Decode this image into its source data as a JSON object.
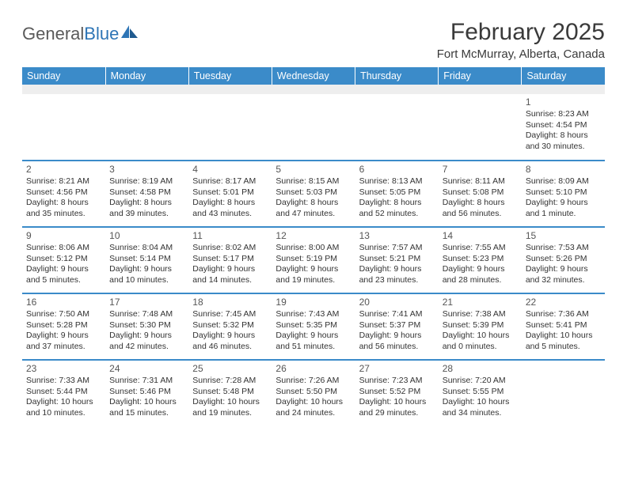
{
  "logo": {
    "text_gray": "General",
    "text_blue": "Blue"
  },
  "title": "February 2025",
  "location": "Fort McMurray, Alberta, Canada",
  "colors": {
    "header_bg": "#3b8bc9",
    "header_text": "#ffffff",
    "blank_row_bg": "#eeeeee",
    "separator": "#3b8bc9",
    "body_text": "#333333",
    "title_text": "#3a3a3a",
    "logo_gray": "#5a5a5a",
    "logo_blue": "#2e75b6"
  },
  "day_headers": [
    "Sunday",
    "Monday",
    "Tuesday",
    "Wednesday",
    "Thursday",
    "Friday",
    "Saturday"
  ],
  "weeks": [
    [
      null,
      null,
      null,
      null,
      null,
      null,
      {
        "n": "1",
        "sr": "Sunrise: 8:23 AM",
        "ss": "Sunset: 4:54 PM",
        "dl": "Daylight: 8 hours and 30 minutes."
      }
    ],
    [
      {
        "n": "2",
        "sr": "Sunrise: 8:21 AM",
        "ss": "Sunset: 4:56 PM",
        "dl": "Daylight: 8 hours and 35 minutes."
      },
      {
        "n": "3",
        "sr": "Sunrise: 8:19 AM",
        "ss": "Sunset: 4:58 PM",
        "dl": "Daylight: 8 hours and 39 minutes."
      },
      {
        "n": "4",
        "sr": "Sunrise: 8:17 AM",
        "ss": "Sunset: 5:01 PM",
        "dl": "Daylight: 8 hours and 43 minutes."
      },
      {
        "n": "5",
        "sr": "Sunrise: 8:15 AM",
        "ss": "Sunset: 5:03 PM",
        "dl": "Daylight: 8 hours and 47 minutes."
      },
      {
        "n": "6",
        "sr": "Sunrise: 8:13 AM",
        "ss": "Sunset: 5:05 PM",
        "dl": "Daylight: 8 hours and 52 minutes."
      },
      {
        "n": "7",
        "sr": "Sunrise: 8:11 AM",
        "ss": "Sunset: 5:08 PM",
        "dl": "Daylight: 8 hours and 56 minutes."
      },
      {
        "n": "8",
        "sr": "Sunrise: 8:09 AM",
        "ss": "Sunset: 5:10 PM",
        "dl": "Daylight: 9 hours and 1 minute."
      }
    ],
    [
      {
        "n": "9",
        "sr": "Sunrise: 8:06 AM",
        "ss": "Sunset: 5:12 PM",
        "dl": "Daylight: 9 hours and 5 minutes."
      },
      {
        "n": "10",
        "sr": "Sunrise: 8:04 AM",
        "ss": "Sunset: 5:14 PM",
        "dl": "Daylight: 9 hours and 10 minutes."
      },
      {
        "n": "11",
        "sr": "Sunrise: 8:02 AM",
        "ss": "Sunset: 5:17 PM",
        "dl": "Daylight: 9 hours and 14 minutes."
      },
      {
        "n": "12",
        "sr": "Sunrise: 8:00 AM",
        "ss": "Sunset: 5:19 PM",
        "dl": "Daylight: 9 hours and 19 minutes."
      },
      {
        "n": "13",
        "sr": "Sunrise: 7:57 AM",
        "ss": "Sunset: 5:21 PM",
        "dl": "Daylight: 9 hours and 23 minutes."
      },
      {
        "n": "14",
        "sr": "Sunrise: 7:55 AM",
        "ss": "Sunset: 5:23 PM",
        "dl": "Daylight: 9 hours and 28 minutes."
      },
      {
        "n": "15",
        "sr": "Sunrise: 7:53 AM",
        "ss": "Sunset: 5:26 PM",
        "dl": "Daylight: 9 hours and 32 minutes."
      }
    ],
    [
      {
        "n": "16",
        "sr": "Sunrise: 7:50 AM",
        "ss": "Sunset: 5:28 PM",
        "dl": "Daylight: 9 hours and 37 minutes."
      },
      {
        "n": "17",
        "sr": "Sunrise: 7:48 AM",
        "ss": "Sunset: 5:30 PM",
        "dl": "Daylight: 9 hours and 42 minutes."
      },
      {
        "n": "18",
        "sr": "Sunrise: 7:45 AM",
        "ss": "Sunset: 5:32 PM",
        "dl": "Daylight: 9 hours and 46 minutes."
      },
      {
        "n": "19",
        "sr": "Sunrise: 7:43 AM",
        "ss": "Sunset: 5:35 PM",
        "dl": "Daylight: 9 hours and 51 minutes."
      },
      {
        "n": "20",
        "sr": "Sunrise: 7:41 AM",
        "ss": "Sunset: 5:37 PM",
        "dl": "Daylight: 9 hours and 56 minutes."
      },
      {
        "n": "21",
        "sr": "Sunrise: 7:38 AM",
        "ss": "Sunset: 5:39 PM",
        "dl": "Daylight: 10 hours and 0 minutes."
      },
      {
        "n": "22",
        "sr": "Sunrise: 7:36 AM",
        "ss": "Sunset: 5:41 PM",
        "dl": "Daylight: 10 hours and 5 minutes."
      }
    ],
    [
      {
        "n": "23",
        "sr": "Sunrise: 7:33 AM",
        "ss": "Sunset: 5:44 PM",
        "dl": "Daylight: 10 hours and 10 minutes."
      },
      {
        "n": "24",
        "sr": "Sunrise: 7:31 AM",
        "ss": "Sunset: 5:46 PM",
        "dl": "Daylight: 10 hours and 15 minutes."
      },
      {
        "n": "25",
        "sr": "Sunrise: 7:28 AM",
        "ss": "Sunset: 5:48 PM",
        "dl": "Daylight: 10 hours and 19 minutes."
      },
      {
        "n": "26",
        "sr": "Sunrise: 7:26 AM",
        "ss": "Sunset: 5:50 PM",
        "dl": "Daylight: 10 hours and 24 minutes."
      },
      {
        "n": "27",
        "sr": "Sunrise: 7:23 AM",
        "ss": "Sunset: 5:52 PM",
        "dl": "Daylight: 10 hours and 29 minutes."
      },
      {
        "n": "28",
        "sr": "Sunrise: 7:20 AM",
        "ss": "Sunset: 5:55 PM",
        "dl": "Daylight: 10 hours and 34 minutes."
      },
      null
    ]
  ]
}
